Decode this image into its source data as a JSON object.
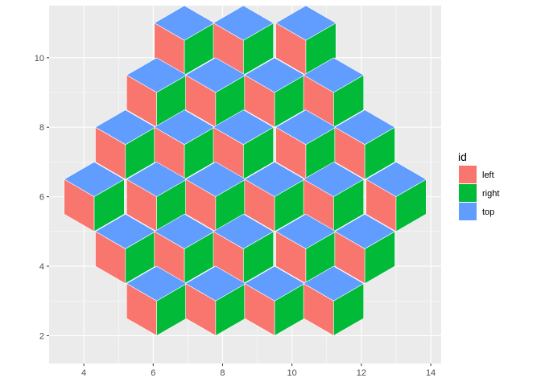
{
  "chart_data": {
    "type": "polygon",
    "xlim": [
      3.0,
      14.3
    ],
    "ylim": [
      1.2,
      11.5
    ],
    "x_ticks": [
      4,
      6,
      8,
      10,
      12,
      14
    ],
    "y_ticks": [
      2,
      4,
      6,
      8,
      10
    ],
    "x_tick_labels": [
      "4",
      "6",
      "8",
      "10",
      "12",
      "14"
    ],
    "y_tick_labels": [
      "2",
      "4",
      "6",
      "8",
      "10"
    ],
    "grid": true,
    "xlabel": "",
    "ylabel": "",
    "cube_geometry": {
      "dx": 0.866,
      "dy": 0.5,
      "edge": 1.0
    },
    "cube_tops": [
      [
        6.9,
        10.5
      ],
      [
        8.6,
        10.5
      ],
      [
        10.4,
        10.5
      ],
      [
        6.1,
        9.0
      ],
      [
        7.8,
        9.0
      ],
      [
        9.5,
        9.0
      ],
      [
        11.2,
        9.0
      ],
      [
        5.2,
        7.5
      ],
      [
        6.9,
        7.5
      ],
      [
        8.6,
        7.5
      ],
      [
        10.4,
        7.5
      ],
      [
        12.1,
        7.5
      ],
      [
        4.3,
        6.0
      ],
      [
        6.1,
        6.0
      ],
      [
        7.8,
        6.0
      ],
      [
        9.5,
        6.0
      ],
      [
        11.2,
        6.0
      ],
      [
        13.0,
        6.0
      ],
      [
        5.2,
        4.5
      ],
      [
        6.9,
        4.5
      ],
      [
        8.6,
        4.5
      ],
      [
        10.4,
        4.5
      ],
      [
        12.1,
        4.5
      ],
      [
        6.1,
        3.0
      ],
      [
        7.8,
        3.0
      ],
      [
        9.5,
        3.0
      ],
      [
        11.2,
        3.0
      ]
    ],
    "legend": {
      "title": "id",
      "position": "right",
      "items": [
        {
          "label": "left",
          "color": "#F8766D"
        },
        {
          "label": "right",
          "color": "#00BA38"
        },
        {
          "label": "top",
          "color": "#619CFF"
        }
      ]
    },
    "colors": {
      "panel_bg": "#EBEBEB",
      "grid_major": "#FFFFFF",
      "face_outline": "#FFFFFF"
    }
  }
}
